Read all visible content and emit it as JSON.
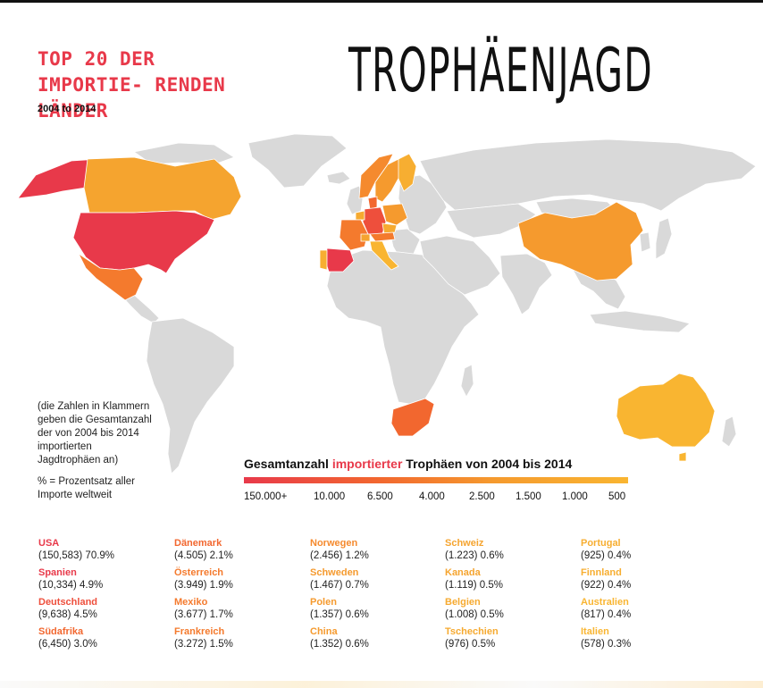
{
  "header": {
    "subtitle": "TOP 20 DER IMPORTIE- RENDEN LÄNDER",
    "years": "2004 to 2014",
    "title": "TROPHÄENJAGD"
  },
  "notes": {
    "parenthesis_note": "(die Zahlen in Klammern geben die Gesamtanzahl der von 2004 bis 2014 importierten Jagdtrophäen an)",
    "percent_note": "% = Prozentsatz aller Importe weltweit"
  },
  "legend": {
    "title_pre": "Gesamtanzahl ",
    "title_highlight": "importierter",
    "title_post": " Trophäen von 2004 bis 2014",
    "ticks": [
      "150.000+",
      "10.000",
      "6.500",
      "4.000",
      "2.500",
      "1.500",
      "1.000",
      "500"
    ]
  },
  "colors": {
    "accent_red": "#e8394a",
    "red_orange": "#f2672f",
    "orange": "#f59a2e",
    "light_orange": "#f9b531",
    "land_gray": "#d9d9d9"
  },
  "countries": [
    {
      "name": "USA",
      "value": "(150,583) 70.9%",
      "color": "#e8394a"
    },
    {
      "name": "Spanien",
      "value": "(10,334) 4.9%",
      "color": "#e8394a"
    },
    {
      "name": "Deutschland",
      "value": "(9,638) 4.5%",
      "color": "#ee4f3c"
    },
    {
      "name": "Südafrika",
      "value": "(6,450) 3.0%",
      "color": "#f2672f"
    },
    {
      "name": "Dänemark",
      "value": "(4.505) 2.1%",
      "color": "#f2672f"
    },
    {
      "name": "Österreich",
      "value": "(3.949) 1.9%",
      "color": "#f47a2d"
    },
    {
      "name": "Mexiko",
      "value": "(3.677) 1.7%",
      "color": "#f47a2d"
    },
    {
      "name": "Frankreich",
      "value": "(3.272) 1.5%",
      "color": "#f47a2d"
    },
    {
      "name": "Norwegen",
      "value": "(2.456) 1.2%",
      "color": "#f58a2e"
    },
    {
      "name": "Schweden",
      "value": "(1.467) 0.7%",
      "color": "#f59a2e"
    },
    {
      "name": "Polen",
      "value": "(1.357) 0.6%",
      "color": "#f59a2e"
    },
    {
      "name": "China",
      "value": "(1.352) 0.6%",
      "color": "#f59a2e"
    },
    {
      "name": "Schweiz",
      "value": "(1.223) 0.6%",
      "color": "#f5a42f"
    },
    {
      "name": "Kanada",
      "value": "(1.119) 0.5%",
      "color": "#f5a42f"
    },
    {
      "name": "Belgien",
      "value": "(1.008) 0.5%",
      "color": "#f6aa30"
    },
    {
      "name": "Tschechien",
      "value": "(976) 0.5%",
      "color": "#f6aa30"
    },
    {
      "name": "Portugal",
      "value": "(925) 0.4%",
      "color": "#f7ae31"
    },
    {
      "name": "Finnland",
      "value": "(922) 0.4%",
      "color": "#f7ae31"
    },
    {
      "name": "Australien",
      "value": "(817) 0.4%",
      "color": "#f9b531"
    },
    {
      "name": "Italien",
      "value": "(578) 0.3%",
      "color": "#f9b531"
    }
  ]
}
